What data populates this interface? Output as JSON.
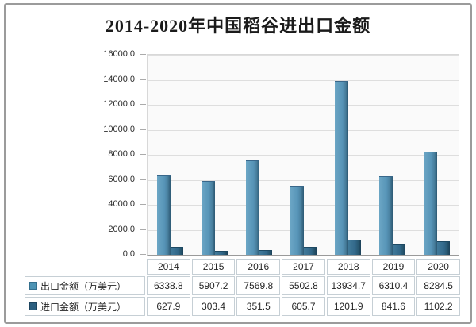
{
  "frame": {
    "border_color": "#9b9b9b",
    "background": "#ffffff"
  },
  "chart_data": {
    "type": "bar",
    "title": "2014-2020年中国稻谷进出口金额",
    "categories": [
      "2014",
      "2015",
      "2016",
      "2017",
      "2018",
      "2019",
      "2020"
    ],
    "series": [
      {
        "name": "出口金额（万美元）",
        "key": "export",
        "values": [
          6338.8,
          5907.2,
          7569.8,
          5502.8,
          13934.7,
          6310.4,
          8284.5
        ],
        "color": "#5794b7",
        "color_dark": "#2c5973",
        "swatch": "#4e94b4",
        "swatch_border": "#35708e"
      },
      {
        "name": "进口金额（万美元）",
        "key": "import",
        "values": [
          627.9,
          303.4,
          351.5,
          605.7,
          1201.9,
          841.6,
          1102.2
        ],
        "color": "#32688a",
        "color_dark": "#1b4058",
        "swatch": "#2b5f80",
        "swatch_border": "#1d4560"
      }
    ],
    "ylim": [
      0,
      16000
    ],
    "ytick_step": 2000,
    "yticks": [
      "16000.0",
      "14000.0",
      "12000.0",
      "10000.0",
      "8000.0",
      "6000.0",
      "4000.0",
      "2000.0",
      "0.0"
    ],
    "grid": true,
    "plot_background": "#fafafa",
    "gridline_color": "#dedede",
    "legend_position": "data-table-left"
  }
}
